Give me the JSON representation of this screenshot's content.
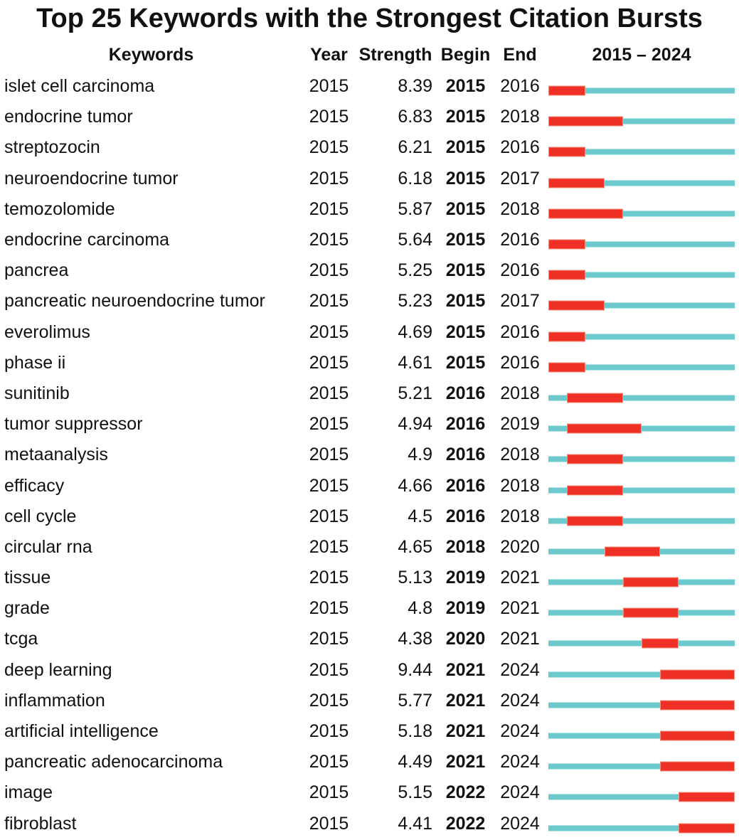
{
  "title": "Top 25 Keywords with the Strongest Citation Bursts",
  "header": {
    "keywords": "Keywords",
    "year": "Year",
    "strength": "Strength",
    "begin": "Begin",
    "end": "End",
    "range": "2015 – 2024"
  },
  "colors": {
    "burst_fill": "#ee3124",
    "burst_border": "#f48f7d",
    "baseline": "#6cc9ce",
    "text": "#111111"
  },
  "chart_data": {
    "type": "table",
    "title": "Top 25 Keywords with the Strongest Citation Bursts",
    "timeline_start": 2015,
    "timeline_end": 2024,
    "columns": [
      "Keywords",
      "Year",
      "Strength",
      "Begin",
      "End",
      "2015 – 2024"
    ],
    "rows": [
      {
        "keyword": "islet cell carcinoma",
        "year": "2015",
        "strength": "8.39",
        "begin": 2015,
        "end": 2016
      },
      {
        "keyword": "endocrine tumor",
        "year": "2015",
        "strength": "6.83",
        "begin": 2015,
        "end": 2018
      },
      {
        "keyword": "streptozocin",
        "year": "2015",
        "strength": "6.21",
        "begin": 2015,
        "end": 2016
      },
      {
        "keyword": "neuroendocrine tumor",
        "year": "2015",
        "strength": "6.18",
        "begin": 2015,
        "end": 2017
      },
      {
        "keyword": "temozolomide",
        "year": "2015",
        "strength": "5.87",
        "begin": 2015,
        "end": 2018
      },
      {
        "keyword": "endocrine carcinoma",
        "year": "2015",
        "strength": "5.64",
        "begin": 2015,
        "end": 2016
      },
      {
        "keyword": "pancrea",
        "year": "2015",
        "strength": "5.25",
        "begin": 2015,
        "end": 2016
      },
      {
        "keyword": "pancreatic neuroendocrine tumor",
        "year": "2015",
        "strength": "5.23",
        "begin": 2015,
        "end": 2017
      },
      {
        "keyword": "everolimus",
        "year": "2015",
        "strength": "4.69",
        "begin": 2015,
        "end": 2016
      },
      {
        "keyword": "phase ii",
        "year": "2015",
        "strength": "4.61",
        "begin": 2015,
        "end": 2016
      },
      {
        "keyword": "sunitinib",
        "year": "2015",
        "strength": "5.21",
        "begin": 2016,
        "end": 2018
      },
      {
        "keyword": "tumor suppressor",
        "year": "2015",
        "strength": "4.94",
        "begin": 2016,
        "end": 2019
      },
      {
        "keyword": "metaanalysis",
        "year": "2015",
        "strength": "4.9",
        "begin": 2016,
        "end": 2018
      },
      {
        "keyword": "efficacy",
        "year": "2015",
        "strength": "4.66",
        "begin": 2016,
        "end": 2018
      },
      {
        "keyword": "cell cycle",
        "year": "2015",
        "strength": "4.5",
        "begin": 2016,
        "end": 2018
      },
      {
        "keyword": "circular rna",
        "year": "2015",
        "strength": "4.65",
        "begin": 2018,
        "end": 2020
      },
      {
        "keyword": "tissue",
        "year": "2015",
        "strength": "5.13",
        "begin": 2019,
        "end": 2021
      },
      {
        "keyword": "grade",
        "year": "2015",
        "strength": "4.8",
        "begin": 2019,
        "end": 2021
      },
      {
        "keyword": "tcga",
        "year": "2015",
        "strength": "4.38",
        "begin": 2020,
        "end": 2021
      },
      {
        "keyword": "deep learning",
        "year": "2015",
        "strength": "9.44",
        "begin": 2021,
        "end": 2024
      },
      {
        "keyword": "inflammation",
        "year": "2015",
        "strength": "5.77",
        "begin": 2021,
        "end": 2024
      },
      {
        "keyword": "artificial intelligence",
        "year": "2015",
        "strength": "5.18",
        "begin": 2021,
        "end": 2024
      },
      {
        "keyword": "pancreatic adenocarcinoma",
        "year": "2015",
        "strength": "4.49",
        "begin": 2021,
        "end": 2024
      },
      {
        "keyword": "image",
        "year": "2015",
        "strength": "5.15",
        "begin": 2022,
        "end": 2024
      },
      {
        "keyword": "fibroblast",
        "year": "2015",
        "strength": "4.41",
        "begin": 2022,
        "end": 2024
      }
    ]
  }
}
